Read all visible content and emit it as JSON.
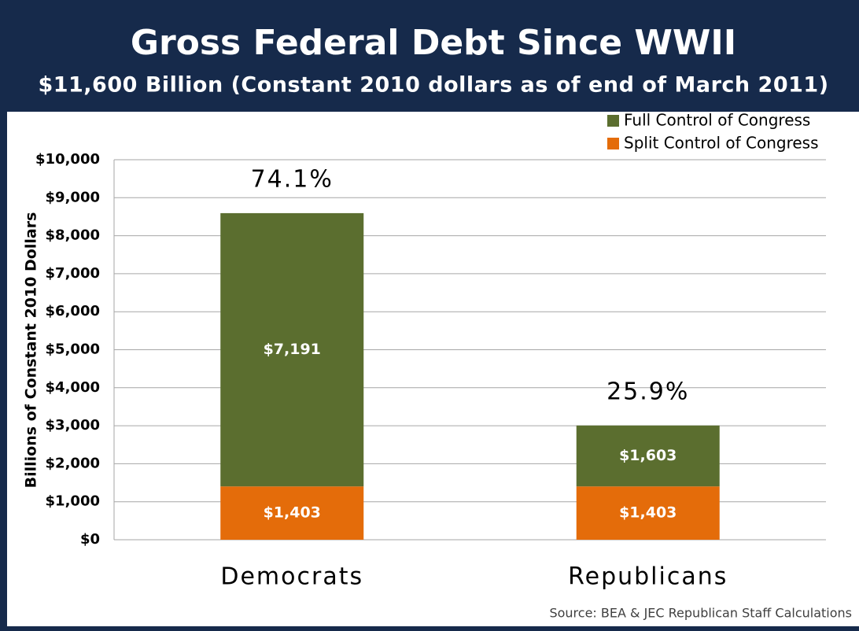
{
  "chart_data": {
    "type": "stacked_bar",
    "title": "Gross Federal Debt Since WWII",
    "subtitle": "$11,600 Billion (Constant 2010 dollars as of end of March 2011)",
    "y_label": "Billions of Constant 2010 Dollars",
    "categories": [
      "Democrats",
      "Republicans"
    ],
    "series": [
      {
        "name": "Full Control of Congress",
        "color": "#5b6e2f",
        "values": [
          7191,
          1603
        ],
        "value_labels": [
          "$7,191",
          "$1,603"
        ]
      },
      {
        "name": "Split Control of Congress",
        "color": "#e46c0a",
        "values": [
          1403,
          1403
        ],
        "value_labels": [
          "$1,403",
          "$1,403"
        ]
      }
    ],
    "share_labels": [
      "74.1%",
      "25.9%"
    ],
    "ylim": [
      0,
      10000
    ],
    "yticks": [
      {
        "value": 0,
        "label": "$0"
      },
      {
        "value": 1000,
        "label": "$1,000"
      },
      {
        "value": 2000,
        "label": "$2,000"
      },
      {
        "value": 3000,
        "label": "$3,000"
      },
      {
        "value": 4000,
        "label": "$4,000"
      },
      {
        "value": 5000,
        "label": "$5,000"
      },
      {
        "value": 6000,
        "label": "$6,000"
      },
      {
        "value": 7000,
        "label": "$7,000"
      },
      {
        "value": 8000,
        "label": "$8,000"
      },
      {
        "value": 9000,
        "label": "$9,000"
      },
      {
        "value": 10000,
        "label": "$10,000"
      }
    ],
    "grid": true,
    "legend": "top-right",
    "source": "Source: BEA & JEC Republican Staff Calculations"
  }
}
